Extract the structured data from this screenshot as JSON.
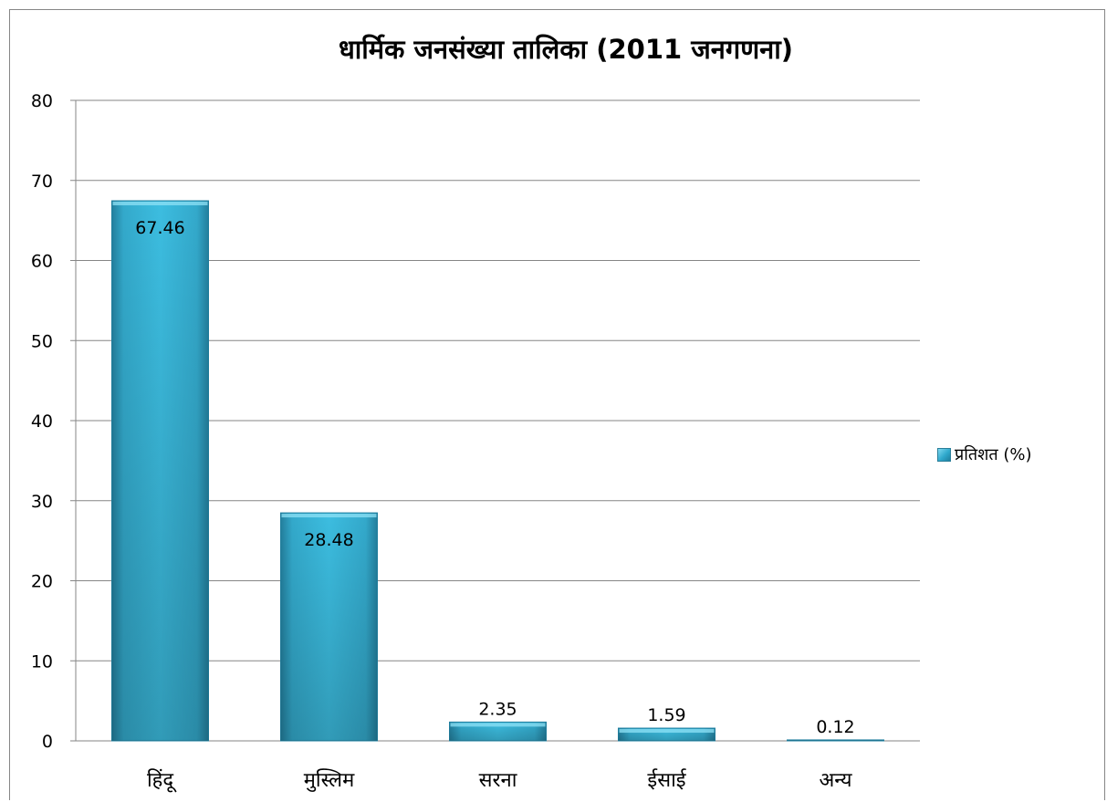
{
  "chart_data": {
    "type": "bar",
    "title": "धार्मिक जनसंख्या तालिका (2011 जनगणना)",
    "categories": [
      "हिंदू",
      "मुस्लिम",
      "सरना",
      "ईसाई",
      "अन्य"
    ],
    "series": [
      {
        "name": "प्रतिशत (%)",
        "values": [
          67.46,
          28.48,
          2.35,
          1.59,
          0.12
        ]
      }
    ],
    "data_labels": [
      "67.46",
      "28.48",
      "2.35",
      "1.59",
      "0.12"
    ],
    "ylim": [
      0,
      80
    ],
    "yticks": [
      0,
      10,
      20,
      30,
      40,
      50,
      60,
      70,
      80
    ],
    "grid": true,
    "legend_position": "right",
    "colors": {
      "bar": "#35b6da",
      "bar_dark": "#1f7f9f",
      "grid": "#868686"
    }
  }
}
